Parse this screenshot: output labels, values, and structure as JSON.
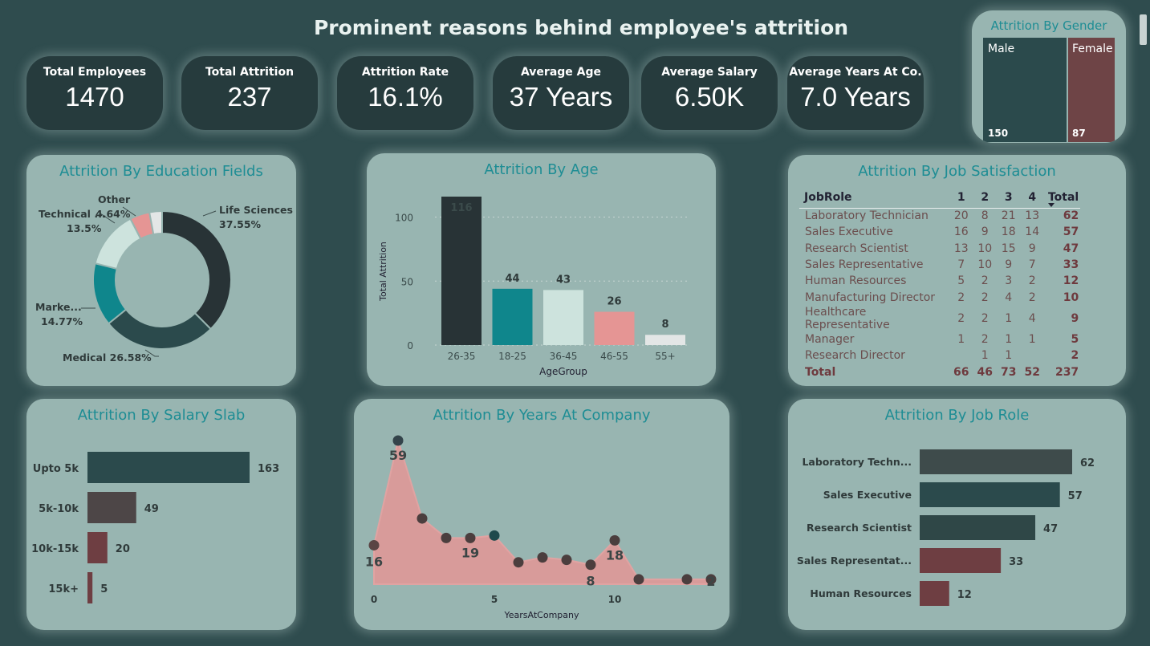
{
  "title": "Prominent reasons behind employee's attrition",
  "kpis": [
    {
      "label": "Total Employees",
      "value": "1470"
    },
    {
      "label": "Total Attrition",
      "value": "237"
    },
    {
      "label": "Attrition Rate",
      "value": "16.1%"
    },
    {
      "label": "Average Age",
      "value": "37 Years"
    },
    {
      "label": "Average Salary",
      "value": "6.50K"
    },
    {
      "label": "Average Years At Co.",
      "value": "7.0 Years"
    }
  ],
  "gender": {
    "title": "Attrition By Gender",
    "male_label": "Male",
    "male_value": "150",
    "female_label": "Female",
    "female_value": "87"
  },
  "cards": {
    "education": "Attrition By Education Fields",
    "age": "Attrition By Age",
    "satisfaction": "Attrition By Job Satisfaction",
    "salary": "Attrition By Salary Slab",
    "years": "Attrition By Years At Company",
    "jobrole": "Attrition By Job Role"
  },
  "satisfaction_table": {
    "headers": [
      "JobRole",
      "1",
      "2",
      "3",
      "4",
      "Total"
    ],
    "rows": [
      [
        "Laboratory Technician",
        "20",
        "8",
        "21",
        "13",
        "62"
      ],
      [
        "Sales Executive",
        "16",
        "9",
        "18",
        "14",
        "57"
      ],
      [
        "Research Scientist",
        "13",
        "10",
        "15",
        "9",
        "47"
      ],
      [
        "Sales Representative",
        "7",
        "10",
        "9",
        "7",
        "33"
      ],
      [
        "Human Resources",
        "5",
        "2",
        "3",
        "2",
        "12"
      ],
      [
        "Manufacturing Director",
        "2",
        "2",
        "4",
        "2",
        "10"
      ],
      [
        "Healthcare Representative",
        "2",
        "2",
        "1",
        "4",
        "9"
      ],
      [
        "Manager",
        "1",
        "2",
        "1",
        "1",
        "5"
      ],
      [
        "Research Director",
        "",
        "1",
        "1",
        "",
        "2"
      ]
    ],
    "total_row": [
      "Total",
      "66",
      "46",
      "73",
      "52",
      "237"
    ]
  },
  "colors": {
    "dark": "#283336",
    "teal": "#0f868c",
    "light": "#cde3dd",
    "pink": "#e59594",
    "white": "#e3e6e6",
    "slate": "#2b4a4c",
    "maroon": "#6e3e42",
    "brown": "#4d4647"
  },
  "chart_data": [
    {
      "type": "pie",
      "title": "Attrition By Education Fields",
      "slices": [
        {
          "name": "Life Sciences",
          "value": 37.55,
          "label": "Life Sciences",
          "pct": "37.55%",
          "color": "#283336"
        },
        {
          "name": "Medical",
          "value": 26.58,
          "label": "Medical 26.58%",
          "pct": "",
          "color": "#2b4a4c"
        },
        {
          "name": "Marketing",
          "value": 14.77,
          "label": "Marke...",
          "pct": "14.77%",
          "color": "#0f868c"
        },
        {
          "name": "Technical Degree",
          "value": 13.5,
          "label": "Technical ...",
          "pct": "13.5%",
          "color": "#cde3dd"
        },
        {
          "name": "Other",
          "value": 4.64,
          "label": "Other",
          "pct": "4.64%",
          "color": "#e59594"
        },
        {
          "name": "Human Resources",
          "value": 2.96,
          "label": "",
          "pct": "",
          "color": "#e3e6e6"
        }
      ]
    },
    {
      "type": "bar",
      "title": "Attrition By Age",
      "categories": [
        "26-35",
        "18-25",
        "36-45",
        "46-55",
        "55+"
      ],
      "values": [
        116,
        44,
        43,
        26,
        8
      ],
      "colors": [
        "#283336",
        "#0f868c",
        "#cde3dd",
        "#e59594",
        "#e3e6e6"
      ],
      "xlabel": "AgeGroup",
      "ylabel": "Total Attrition",
      "yticks": [
        "0",
        "50",
        "100"
      ],
      "ylim": [
        0,
        116
      ]
    },
    {
      "type": "bar",
      "title": "Attrition By Salary Slab",
      "categories": [
        "Upto 5k",
        "5k-10k",
        "10k-15k",
        "15k+"
      ],
      "values": [
        163,
        49,
        20,
        5
      ],
      "colors": [
        "#2b4a4c",
        "#4d4647",
        "#6e3e42",
        "#6e3e42"
      ]
    },
    {
      "type": "area",
      "title": "Attrition By Years At Company",
      "x": [
        0,
        1,
        2,
        3,
        4,
        5,
        6,
        7,
        8,
        9,
        10,
        11,
        13,
        14
      ],
      "values": [
        16,
        59,
        27,
        19,
        19,
        20,
        9,
        11,
        10,
        8,
        18,
        2,
        2,
        2
      ],
      "point_labels": [
        "16",
        "59",
        "",
        "",
        "19",
        "",
        "",
        "",
        "",
        "8",
        "18",
        "",
        "",
        "2"
      ],
      "xticks": [
        "0",
        "5",
        "10"
      ],
      "xlabel": "YearsAtCompany"
    },
    {
      "type": "bar",
      "title": "Attrition By Job Role",
      "categories": [
        "Laboratory Techn...",
        "Sales Executive",
        "Research Scientist",
        "Sales Representat...",
        "Human Resources"
      ],
      "values": [
        62,
        57,
        47,
        33,
        12
      ],
      "colors": [
        "#3e4b4b",
        "#2b4a4c",
        "#2f4747",
        "#6e3e42",
        "#6e3e42"
      ]
    }
  ]
}
